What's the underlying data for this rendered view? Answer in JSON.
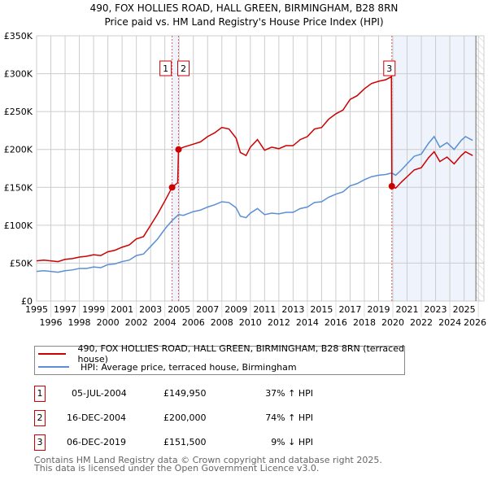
{
  "chart_data": {
    "type": "line",
    "title": "490, FOX HOLLIES ROAD, HALL GREEN, BIRMINGHAM, B28 8RN",
    "subtitle": "Price paid vs. HM Land Registry's House Price Index (HPI)",
    "xlim": [
      1995,
      2026
    ],
    "ylim": [
      0,
      350000
    ],
    "y_ticks": [
      {
        "v": 0,
        "label": "£0"
      },
      {
        "v": 50000,
        "label": "£50K"
      },
      {
        "v": 100000,
        "label": "£100K"
      },
      {
        "v": 150000,
        "label": "£150K"
      },
      {
        "v": 200000,
        "label": "£200K"
      },
      {
        "v": 250000,
        "label": "£250K"
      },
      {
        "v": 300000,
        "label": "£300K"
      },
      {
        "v": 350000,
        "label": "£350K"
      }
    ],
    "x_ticks": [
      "1995",
      "1996",
      "1997",
      "1998",
      "1999",
      "2000",
      "2001",
      "2002",
      "2003",
      "2004",
      "2005",
      "2006",
      "2007",
      "2008",
      "2009",
      "2010",
      "2011",
      "2012",
      "2013",
      "2014",
      "2015",
      "2016",
      "2017",
      "2018",
      "2019",
      "2020",
      "2021",
      "2022",
      "2023",
      "2024",
      "2025",
      "2026"
    ],
    "grid": true,
    "colors": {
      "property": "#cc0000",
      "hpi": "#5b8fd4",
      "shade": "#eef3fc"
    },
    "series": [
      {
        "name": "490, FOX HOLLIES ROAD, HALL GREEN, BIRMINGHAM, B28 8RN (terraced house)",
        "color": "#cc0000",
        "points": [
          [
            1995,
            53
          ],
          [
            1995.5,
            54
          ],
          [
            1996,
            53
          ],
          [
            1996.5,
            52
          ],
          [
            1997,
            55
          ],
          [
            1997.5,
            56
          ],
          [
            1998,
            58
          ],
          [
            1998.5,
            59
          ],
          [
            1999,
            61
          ],
          [
            1999.5,
            60
          ],
          [
            2000,
            65
          ],
          [
            2000.5,
            67
          ],
          [
            2001,
            71
          ],
          [
            2001.5,
            74
          ],
          [
            2002,
            82
          ],
          [
            2002.5,
            85
          ],
          [
            2003,
            100
          ],
          [
            2003.5,
            115
          ],
          [
            2004,
            132
          ],
          [
            2004.51,
            149.95
          ],
          [
            2004.9,
            156
          ],
          [
            2004.96,
            200
          ],
          [
            2005.3,
            203
          ],
          [
            2006,
            207
          ],
          [
            2006.5,
            210
          ],
          [
            2007,
            217
          ],
          [
            2007.5,
            222
          ],
          [
            2008,
            229
          ],
          [
            2008.5,
            227
          ],
          [
            2009,
            215
          ],
          [
            2009.3,
            196
          ],
          [
            2009.7,
            192
          ],
          [
            2010,
            203
          ],
          [
            2010.5,
            213
          ],
          [
            2011,
            199
          ],
          [
            2011.5,
            203
          ],
          [
            2012,
            201
          ],
          [
            2012.5,
            205
          ],
          [
            2013,
            205
          ],
          [
            2013.5,
            213
          ],
          [
            2014,
            217
          ],
          [
            2014.5,
            227
          ],
          [
            2015,
            229
          ],
          [
            2015.5,
            240
          ],
          [
            2016,
            247
          ],
          [
            2016.5,
            252
          ],
          [
            2017,
            266
          ],
          [
            2017.5,
            271
          ],
          [
            2018,
            280
          ],
          [
            2018.5,
            287
          ],
          [
            2019,
            290
          ],
          [
            2019.5,
            292
          ],
          [
            2019.9,
            296
          ],
          [
            2019.93,
            151.5
          ],
          [
            2020.2,
            149
          ],
          [
            2020.6,
            157
          ],
          [
            2021,
            164
          ],
          [
            2021.5,
            173
          ],
          [
            2022,
            176
          ],
          [
            2022.5,
            189
          ],
          [
            2022.9,
            197
          ],
          [
            2023.3,
            184
          ],
          [
            2023.8,
            190
          ],
          [
            2024.3,
            181
          ],
          [
            2024.8,
            192
          ],
          [
            2025.1,
            197
          ],
          [
            2025.6,
            192
          ]
        ]
      },
      {
        "name": "HPI: Average price, terraced house, Birmingham",
        "color": "#5b8fd4",
        "points": [
          [
            1995,
            39
          ],
          [
            1995.5,
            40
          ],
          [
            1996,
            39
          ],
          [
            1996.5,
            38
          ],
          [
            1997,
            40
          ],
          [
            1997.5,
            41
          ],
          [
            1998,
            43
          ],
          [
            1998.5,
            43
          ],
          [
            1999,
            45
          ],
          [
            1999.5,
            44
          ],
          [
            2000,
            48
          ],
          [
            2000.5,
            49
          ],
          [
            2001,
            52
          ],
          [
            2001.5,
            54
          ],
          [
            2002,
            60
          ],
          [
            2002.5,
            62
          ],
          [
            2003,
            72
          ],
          [
            2003.5,
            82
          ],
          [
            2004,
            95
          ],
          [
            2004.5,
            106
          ],
          [
            2004.96,
            114
          ],
          [
            2005.3,
            113
          ],
          [
            2006,
            118
          ],
          [
            2006.5,
            120
          ],
          [
            2007,
            124
          ],
          [
            2007.5,
            127
          ],
          [
            2008,
            131
          ],
          [
            2008.5,
            130
          ],
          [
            2009,
            123
          ],
          [
            2009.3,
            112
          ],
          [
            2009.7,
            110
          ],
          [
            2010,
            116
          ],
          [
            2010.5,
            122
          ],
          [
            2011,
            114
          ],
          [
            2011.5,
            116
          ],
          [
            2012,
            115
          ],
          [
            2012.5,
            117
          ],
          [
            2013,
            117
          ],
          [
            2013.5,
            122
          ],
          [
            2014,
            124
          ],
          [
            2014.5,
            130
          ],
          [
            2015,
            131
          ],
          [
            2015.5,
            137
          ],
          [
            2016,
            141
          ],
          [
            2016.5,
            144
          ],
          [
            2017,
            152
          ],
          [
            2017.5,
            155
          ],
          [
            2018,
            160
          ],
          [
            2018.5,
            164
          ],
          [
            2019,
            166
          ],
          [
            2019.5,
            167
          ],
          [
            2019.93,
            169
          ],
          [
            2020.2,
            166
          ],
          [
            2020.6,
            173
          ],
          [
            2021,
            181
          ],
          [
            2021.5,
            191
          ],
          [
            2022,
            194
          ],
          [
            2022.5,
            208
          ],
          [
            2022.9,
            217
          ],
          [
            2023.3,
            203
          ],
          [
            2023.8,
            209
          ],
          [
            2024.3,
            200
          ],
          [
            2024.8,
            212
          ],
          [
            2025.1,
            217
          ],
          [
            2025.6,
            212
          ]
        ]
      }
    ],
    "sales": [
      {
        "label": "1",
        "year": 2004.51,
        "price": 149950,
        "date": "05-JUL-2004",
        "price_text": "£149,950",
        "hpi_text": "37% ↑ HPI"
      },
      {
        "label": "2",
        "year": 2004.96,
        "price": 200000,
        "date": "16-DEC-2004",
        "price_text": "£200,000",
        "hpi_text": "74% ↑ HPI"
      },
      {
        "label": "3",
        "year": 2019.93,
        "price": 151500,
        "date": "06-DEC-2019",
        "price_text": "£151,500",
        "hpi_text": "9% ↓ HPI"
      }
    ],
    "forecast_from": 2025.83
  },
  "legend": {
    "property": "490, FOX HOLLIES ROAD, HALL GREEN, BIRMINGHAM, B28 8RN (terraced house)",
    "hpi": "HPI: Average price, terraced house, Birmingham"
  },
  "footer": {
    "line1": "Contains HM Land Registry data © Crown copyright and database right 2025.",
    "line2": "This data is licensed under the Open Government Licence v3.0."
  }
}
